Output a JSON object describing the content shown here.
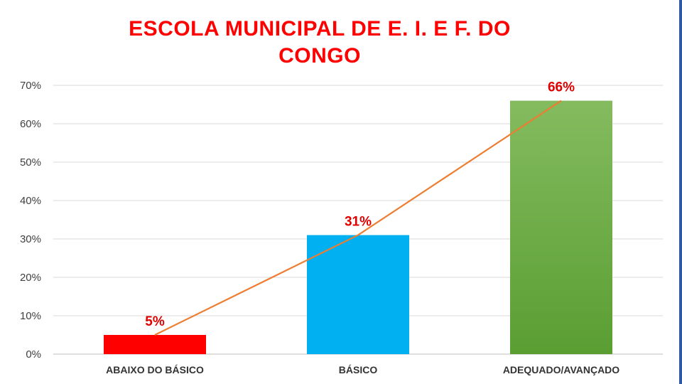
{
  "chart_data": {
    "type": "bar",
    "title_lines": [
      "ESCOLA MUNICIPAL DE E. I. E F. DO",
      "CONGO"
    ],
    "categories": [
      "ABAIXO DO BÁSICO",
      "BÁSICO",
      "ADEQUADO/AVANÇADO"
    ],
    "values": [
      5,
      31,
      66
    ],
    "data_labels": [
      "5%",
      "31%",
      "66%"
    ],
    "bar_colors": [
      "#ff0000",
      "#00b0f0",
      "#70ad47"
    ],
    "line_color": "#ed7d31",
    "label_color": "#e00000",
    "y_ticks": [
      0,
      10,
      20,
      30,
      40,
      50,
      60,
      70
    ],
    "y_tick_labels": [
      "0%",
      "10%",
      "20%",
      "30%",
      "40%",
      "50%",
      "60%",
      "70%"
    ],
    "ylim": [
      0,
      70
    ],
    "grid": true,
    "legend": "none",
    "overlay_line": "trend line through bar tops"
  }
}
